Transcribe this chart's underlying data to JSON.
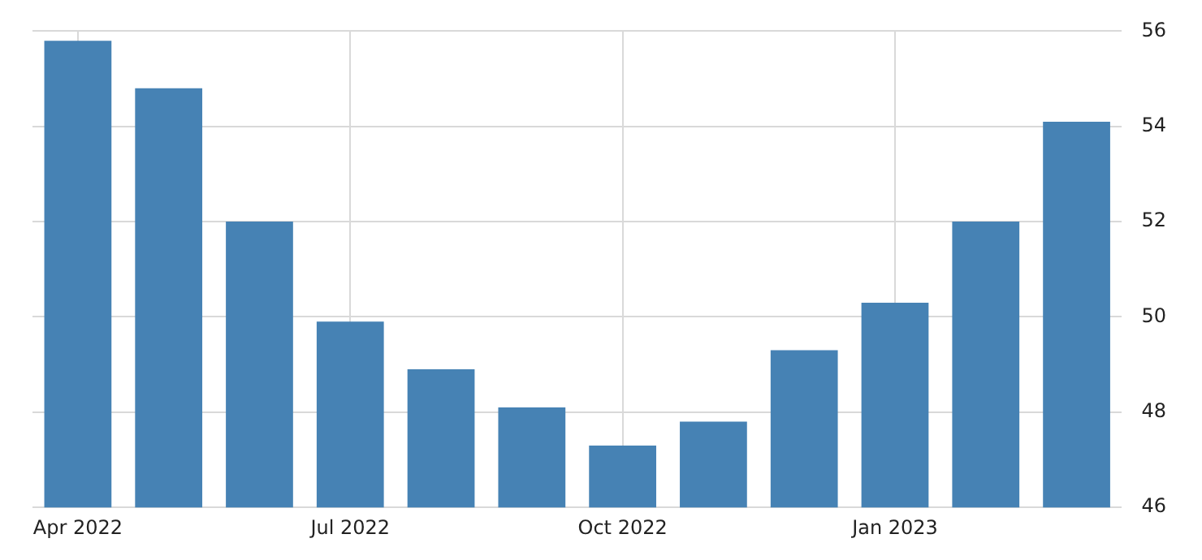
{
  "chart_data": {
    "type": "bar",
    "categories": [
      "Apr 2022",
      null,
      null,
      "Jul 2022",
      null,
      null,
      "Oct 2022",
      null,
      null,
      "Jan 2023",
      null,
      null
    ],
    "values": [
      55.8,
      54.8,
      52.0,
      49.9,
      48.9,
      48.1,
      47.3,
      47.8,
      49.3,
      50.3,
      52.0,
      54.1
    ],
    "color": "#4682b4",
    "ylim": [
      46,
      56
    ],
    "yticks": [
      46,
      48,
      50,
      52,
      54,
      56
    ],
    "grid": true
  }
}
